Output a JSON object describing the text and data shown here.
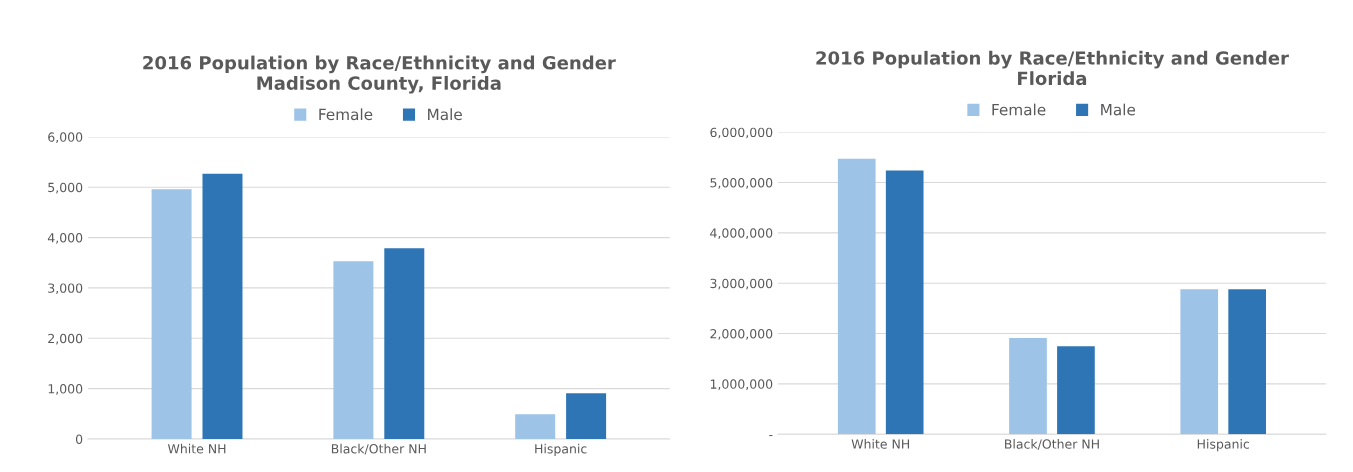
{
  "chart_data": [
    {
      "type": "bar",
      "title": "2016 Population by Race/Ethnicity and Gender\nMadison County, Florida",
      "categories": [
        "White NH",
        "Black/Other NH",
        "Hispanic"
      ],
      "series": [
        {
          "name": "Female",
          "color": "#9dc3e6",
          "values": [
            4960,
            3530,
            490
          ]
        },
        {
          "name": "Male",
          "color": "#2e75b6",
          "values": [
            5270,
            3790,
            910
          ]
        }
      ],
      "ylim": [
        0,
        6000
      ],
      "yticks": [
        {
          "value": 0,
          "label": "0"
        },
        {
          "value": 1000,
          "label": "1,000"
        },
        {
          "value": 2000,
          "label": "2,000"
        },
        {
          "value": 3000,
          "label": "3,000"
        },
        {
          "value": 4000,
          "label": "4,000"
        },
        {
          "value": 5000,
          "label": "5,000"
        },
        {
          "value": 6000,
          "label": "6,000"
        }
      ],
      "grid": "y",
      "legend": "top"
    },
    {
      "type": "bar",
      "title": "2016 Population by Race/Ethnicity and Gender\nFlorida",
      "categories": [
        "White NH",
        "Black/Other NH",
        "Hispanic"
      ],
      "series": [
        {
          "name": "Female",
          "color": "#9dc3e6",
          "values": [
            5470000,
            1910000,
            2880000
          ]
        },
        {
          "name": "Male",
          "color": "#2e75b6",
          "values": [
            5240000,
            1750000,
            2880000
          ]
        }
      ],
      "ylim": [
        0,
        6000000
      ],
      "yticks": [
        {
          "value": 0,
          "label": "-"
        },
        {
          "value": 1000000,
          "label": "1,000,000"
        },
        {
          "value": 2000000,
          "label": "2,000,000"
        },
        {
          "value": 3000000,
          "label": "3,000,000"
        },
        {
          "value": 4000000,
          "label": "4,000,000"
        },
        {
          "value": 5000000,
          "label": "5,000,000"
        },
        {
          "value": 6000000,
          "label": "6,000,000"
        }
      ],
      "grid": "y",
      "legend": "top"
    }
  ]
}
